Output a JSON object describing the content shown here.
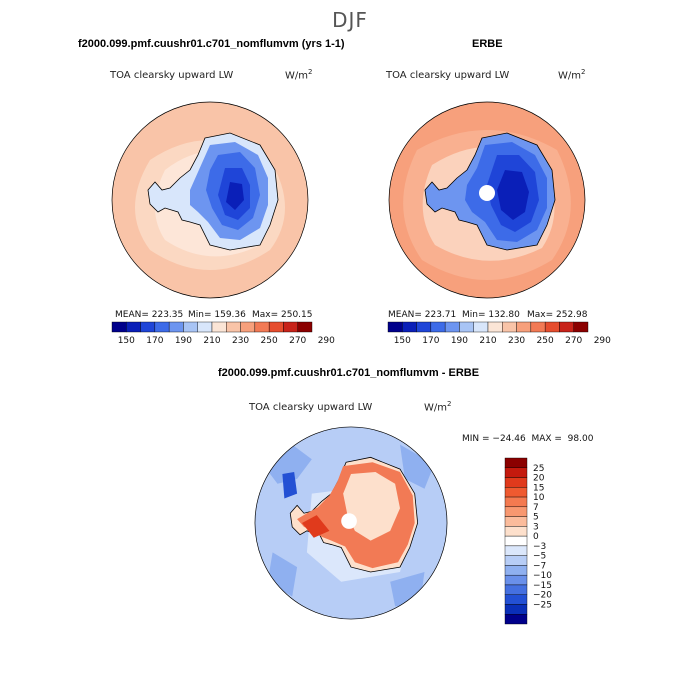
{
  "season": "DJF",
  "panel1": {
    "title": "f2000.099.pmf.cuushr01.c701_nomflumvm (yrs 1-1)",
    "variable": "TOA clearsky upward LW",
    "units_base": "W/m",
    "units_exp": "2",
    "stats": {
      "mean": "MEAN= 223.35",
      "min": "Min= 159.36",
      "max": "Max= 250.15"
    }
  },
  "panel2": {
    "title": "ERBE",
    "variable": "TOA clearsky upward LW",
    "units_base": "W/m",
    "units_exp": "2",
    "stats": {
      "mean": "MEAN= 223.71",
      "min": "Min= 132.80",
      "max": "Max= 252.98"
    }
  },
  "panel3": {
    "title": "f2000.099.pmf.cuushr01.c701_nomflumvm - ERBE",
    "variable": "TOA clearsky upward LW",
    "units_base": "W/m",
    "units_exp": "2",
    "stats_line": "MIN = −24.46  MAX =  98.00"
  },
  "abs_colorbar": {
    "labels": [
      "150",
      "170",
      "190",
      "210",
      "230",
      "250",
      "270",
      "290"
    ],
    "colors": [
      "#00008b",
      "#0a1fb8",
      "#1f45d8",
      "#3d6be8",
      "#6d95f0",
      "#a8c4f5",
      "#d8e6fb",
      "#fbe5d6",
      "#f9c4a8",
      "#f7a07c",
      "#f27a55",
      "#e64d2e",
      "#c8231a",
      "#8b0000"
    ]
  },
  "diff_colorbar": {
    "labels": [
      "25",
      "20",
      "15",
      "10",
      "7",
      "5",
      "3",
      "0",
      "−3",
      "−5",
      "−7",
      "−10",
      "−15",
      "−20",
      "−25"
    ],
    "colors": [
      "#8b0000",
      "#c41a0e",
      "#e03a1c",
      "#ef5a30",
      "#f47a50",
      "#f89870",
      "#fbbc9c",
      "#fde0cc",
      "#ffffff",
      "#dbe7fb",
      "#b7cdf6",
      "#8fb0f0",
      "#6a90ea",
      "#4570e0",
      "#2350d4",
      "#0a2fb8",
      "#00008b"
    ]
  }
}
